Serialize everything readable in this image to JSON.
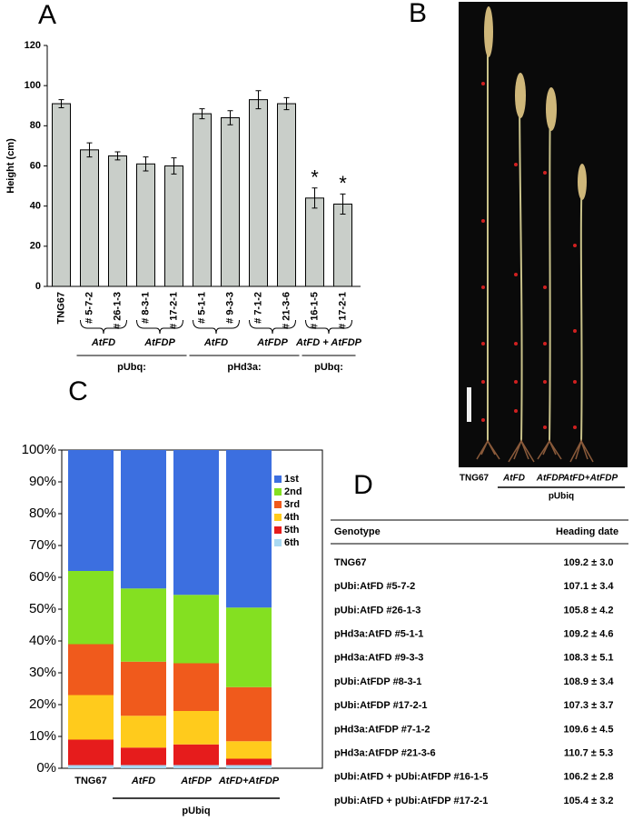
{
  "panels": {
    "a": "A",
    "b": "B",
    "c": "C",
    "d": "D"
  },
  "chart_data": [
    {
      "type": "bar",
      "ylabel": "Height (cm)",
      "categories": [
        "TNG67",
        "# 5-7-2",
        "# 26-1-3",
        "# 8-3-1",
        "# 17-2-1",
        "# 5-1-1",
        "# 9-3-3",
        "# 7-1-2",
        "# 21-3-6",
        "# 16-1-5",
        "# 17-2-1"
      ],
      "values": [
        91,
        68,
        65,
        61,
        60,
        86,
        84,
        93,
        91,
        44,
        41
      ],
      "errors": [
        2,
        3.5,
        2,
        3.5,
        4,
        2.5,
        3.5,
        4.5,
        3,
        5,
        5
      ],
      "annotations": [
        null,
        null,
        null,
        null,
        null,
        null,
        null,
        null,
        null,
        "*",
        "*"
      ],
      "color": "#c9cec9",
      "ylim": [
        0,
        120
      ],
      "yticks": [
        0,
        20,
        40,
        60,
        80,
        100,
        120
      ],
      "groups": [
        {
          "label": "AtFD",
          "from": 1,
          "to": 2
        },
        {
          "label": "AtFDP",
          "from": 3,
          "to": 4
        },
        {
          "label": "AtFD",
          "from": 5,
          "to": 6
        },
        {
          "label": "AtFDP",
          "from": 7,
          "to": 8
        },
        {
          "label": "AtFD + AtFDP",
          "from": 9,
          "to": 10
        }
      ],
      "promoters": [
        {
          "label": "pUbq:",
          "from": 1,
          "to": 4
        },
        {
          "label": "pHd3a:",
          "from": 5,
          "to": 8
        },
        {
          "label": "pUbq:",
          "from": 9,
          "to": 10
        }
      ]
    },
    {
      "type": "stacked_bar",
      "categories": [
        "TNG67",
        "AtFD",
        "AtFDP",
        "AtFD+AtFDP"
      ],
      "series": [
        {
          "name": "1st",
          "color": "#3c6fe0",
          "values": [
            38,
            43.5,
            45.5,
            49.5
          ]
        },
        {
          "name": "2nd",
          "color": "#84e021",
          "values": [
            23,
            23,
            21.5,
            25
          ]
        },
        {
          "name": "3rd",
          "color": "#f05a1c",
          "values": [
            16,
            17,
            15,
            17
          ]
        },
        {
          "name": "4th",
          "color": "#ffcb1c",
          "values": [
            14,
            10,
            10.5,
            5.5
          ]
        },
        {
          "name": "5th",
          "color": "#e61c1c",
          "values": [
            8,
            5.5,
            6.5,
            2
          ]
        },
        {
          "name": "6th",
          "color": "#a9d9f2",
          "values": [
            1,
            1,
            1,
            1
          ]
        }
      ],
      "ylim": [
        0,
        100
      ],
      "yticks": [
        {
          "value": 0,
          "label": "0%"
        },
        {
          "value": 10,
          "label": "10%"
        },
        {
          "value": 20,
          "label": "20%"
        },
        {
          "value": 30,
          "label": "30%"
        },
        {
          "value": 40,
          "label": "40%"
        },
        {
          "value": 50,
          "label": "50%"
        },
        {
          "value": 60,
          "label": "60%"
        },
        {
          "value": 70,
          "label": "70%"
        },
        {
          "value": 80,
          "label": "80%"
        },
        {
          "value": 90,
          "label": "90%"
        },
        {
          "value": 100,
          "label": "100%"
        }
      ],
      "group": {
        "label": "pUbiq",
        "from": 1,
        "to": 3
      }
    }
  ],
  "photo": {
    "labels": [
      "TNG67",
      "AtFD",
      "AtFDP",
      "AtFD+AtFDP"
    ],
    "group": "pUbiq"
  },
  "table": {
    "header": [
      "Genotype",
      "Heading date"
    ],
    "rows": [
      [
        "TNG67",
        "109.2 ± 3.0"
      ],
      [
        "pUbi:AtFD #5-7-2",
        "107.1 ± 3.4"
      ],
      [
        "pUbi:AtFD #26-1-3",
        "105.8 ± 4.2"
      ],
      [
        "pHd3a:AtFD #5-1-1",
        "109.2 ± 4.6"
      ],
      [
        "pHd3a:AtFD #9-3-3",
        "108.3 ± 5.1"
      ],
      [
        "pUbi:AtFDP #8-3-1",
        "108.9 ± 3.4"
      ],
      [
        "pUbi:AtFDP #17-2-1",
        "107.3 ± 3.7"
      ],
      [
        "pHd3a:AtFDP #7-1-2",
        "109.6 ± 4.5"
      ],
      [
        "pHd3a:AtFDP #21-3-6",
        "110.7 ± 5.3"
      ],
      [
        "pUbi:AtFD + pUbi:AtFDP #16-1-5",
        "106.2 ± 2.8"
      ],
      [
        "pUbi:AtFD + pUbi:AtFDP #17-2-1",
        "105.4 ± 3.2"
      ]
    ]
  }
}
